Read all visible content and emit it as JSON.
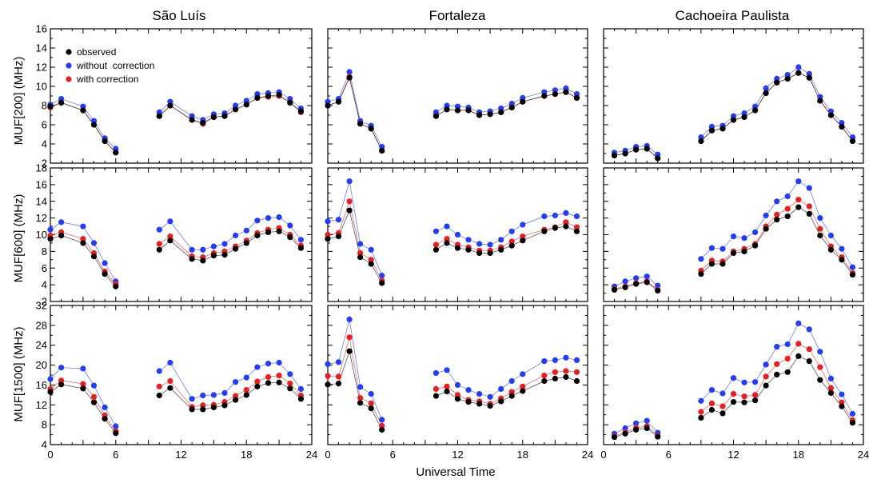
{
  "chart_data": {
    "type": "scatter",
    "x_title": "Universal Time",
    "columns": [
      "São Luís",
      "Fortaleza",
      "Cachoeira Paulista"
    ],
    "xlim": [
      0,
      24
    ],
    "xticks": [
      0,
      6,
      12,
      18,
      24
    ],
    "rows": [
      {
        "ylabel": "MUF[200] (MHz)",
        "ylim": [
          2,
          16
        ],
        "yticks": [
          2,
          4,
          6,
          8,
          10,
          12,
          14,
          16
        ]
      },
      {
        "ylabel": "MUF[600] (MHz)",
        "ylim": [
          2,
          18
        ],
        "yticks": [
          2,
          4,
          6,
          8,
          10,
          12,
          14,
          16,
          18
        ]
      },
      {
        "ylabel": "MUF[1500] (MHz)",
        "ylim": [
          4,
          32
        ],
        "yticks": [
          4,
          8,
          12,
          16,
          20,
          24,
          28,
          32
        ]
      }
    ],
    "legend": {
      "location": "top-left of first panel",
      "entries": [
        {
          "label": "observed",
          "color": "#000000"
        },
        {
          "label": "without  correction",
          "color": "#1f3cff"
        },
        {
          "label": "with correction",
          "color": "#ee1c1c"
        }
      ]
    },
    "series_colors": {
      "observed": "#000000",
      "without": "#1f3cff",
      "with": "#ee1c1c"
    },
    "panels": [
      {
        "row": 0,
        "col": 0,
        "x": [
          0,
          1,
          3,
          4,
          5,
          6,
          10,
          11,
          13,
          14,
          15,
          16,
          17,
          18,
          19,
          20,
          21,
          22,
          23
        ],
        "observed": [
          7.9,
          8.3,
          7.5,
          6.0,
          4.3,
          3.1,
          6.9,
          8.0,
          6.5,
          6.2,
          6.8,
          6.9,
          7.6,
          8.1,
          8.8,
          9.0,
          9.1,
          8.3,
          7.4
        ],
        "without": [
          8.1,
          8.7,
          7.9,
          6.4,
          4.6,
          3.5,
          7.3,
          8.4,
          6.9,
          6.5,
          7.1,
          7.2,
          8.0,
          8.5,
          9.2,
          9.3,
          9.4,
          8.7,
          7.7
        ],
        "with": [
          7.8,
          8.3,
          7.5,
          6.0,
          4.3,
          3.1,
          6.9,
          8.0,
          6.5,
          6.1,
          6.8,
          6.9,
          7.6,
          8.1,
          8.8,
          8.9,
          9.0,
          8.3,
          7.3
        ]
      },
      {
        "row": 0,
        "col": 1,
        "x": [
          0,
          1,
          2,
          3,
          4,
          5,
          10,
          11,
          12,
          13,
          14,
          15,
          16,
          17,
          18,
          20,
          21,
          22,
          23
        ],
        "observed": [
          8.0,
          8.4,
          10.9,
          6.1,
          5.6,
          3.3,
          6.9,
          7.6,
          7.5,
          7.5,
          7.0,
          7.1,
          7.3,
          7.8,
          8.4,
          9.0,
          9.2,
          9.4,
          8.8
        ],
        "without": [
          8.4,
          8.7,
          11.5,
          6.4,
          5.9,
          3.7,
          7.3,
          8.0,
          7.9,
          7.8,
          7.3,
          7.4,
          7.7,
          8.2,
          8.8,
          9.4,
          9.6,
          9.8,
          9.2
        ],
        "with": [
          8.0,
          8.4,
          11.0,
          6.1,
          5.6,
          3.3,
          6.9,
          7.6,
          7.5,
          7.5,
          7.0,
          7.1,
          7.3,
          7.8,
          8.4,
          9.0,
          9.2,
          9.4,
          8.8
        ]
      },
      {
        "row": 0,
        "col": 2,
        "x": [
          1,
          2,
          3,
          4,
          5,
          9,
          10,
          11,
          12,
          13,
          14,
          15,
          16,
          17,
          18,
          19,
          20,
          21,
          22,
          23
        ],
        "observed": [
          2.8,
          3.0,
          3.4,
          3.5,
          2.5,
          4.3,
          5.4,
          5.6,
          6.5,
          6.8,
          7.5,
          9.3,
          10.4,
          10.8,
          11.4,
          10.9,
          8.5,
          7.0,
          5.8,
          4.3
        ],
        "without": [
          3.1,
          3.3,
          3.7,
          3.8,
          2.9,
          4.7,
          5.8,
          5.9,
          6.9,
          7.2,
          7.9,
          9.8,
          10.8,
          11.2,
          12.0,
          11.3,
          8.9,
          7.4,
          6.2,
          4.7
        ],
        "with": [
          2.8,
          3.0,
          3.4,
          3.5,
          2.5,
          4.3,
          5.4,
          5.6,
          6.5,
          6.8,
          7.5,
          9.3,
          10.4,
          10.8,
          11.4,
          10.9,
          8.5,
          7.0,
          5.8,
          4.3
        ]
      },
      {
        "row": 1,
        "col": 0,
        "x": [
          0,
          1,
          3,
          4,
          5,
          6,
          10,
          11,
          13,
          14,
          15,
          16,
          17,
          18,
          19,
          20,
          21,
          22,
          23
        ],
        "observed": [
          9.5,
          9.9,
          9.0,
          7.4,
          5.3,
          3.8,
          8.2,
          9.3,
          7.1,
          6.9,
          7.5,
          7.6,
          8.3,
          9.0,
          9.9,
          10.3,
          10.4,
          9.7,
          8.4
        ],
        "without": [
          10.6,
          11.5,
          11.0,
          9.0,
          6.6,
          4.4,
          10.6,
          11.6,
          8.2,
          8.2,
          8.6,
          8.9,
          9.9,
          10.5,
          11.7,
          12.0,
          12.1,
          11.1,
          9.4
        ],
        "with": [
          9.9,
          10.3,
          9.5,
          7.8,
          5.6,
          4.1,
          8.9,
          9.8,
          7.4,
          7.3,
          7.8,
          8.0,
          8.6,
          9.3,
          10.2,
          10.6,
          10.8,
          10.0,
          8.7
        ]
      },
      {
        "row": 1,
        "col": 1,
        "x": [
          0,
          1,
          2,
          3,
          4,
          5,
          10,
          11,
          12,
          13,
          14,
          15,
          16,
          17,
          18,
          20,
          21,
          22,
          23
        ],
        "observed": [
          9.5,
          9.8,
          12.9,
          7.3,
          6.5,
          4.2,
          8.2,
          9.0,
          8.4,
          8.2,
          7.8,
          7.8,
          8.2,
          8.7,
          9.3,
          10.4,
          10.8,
          11.0,
          10.4
        ],
        "without": [
          11.6,
          11.8,
          16.4,
          8.9,
          8.2,
          5.1,
          10.4,
          11.0,
          10.0,
          9.4,
          8.9,
          8.8,
          9.4,
          10.4,
          11.2,
          12.2,
          12.3,
          12.6,
          12.2
        ],
        "with": [
          10.0,
          10.2,
          14.0,
          7.8,
          7.0,
          4.5,
          8.8,
          9.5,
          8.8,
          8.5,
          8.1,
          8.1,
          8.5,
          9.2,
          9.8,
          10.6,
          10.9,
          11.5,
          10.9
        ]
      },
      {
        "row": 1,
        "col": 2,
        "x": [
          1,
          2,
          3,
          4,
          5,
          9,
          10,
          11,
          12,
          13,
          14,
          15,
          16,
          17,
          18,
          19,
          20,
          21,
          22,
          23
        ],
        "observed": [
          3.4,
          3.7,
          4.1,
          4.3,
          3.3,
          5.3,
          6.5,
          6.5,
          7.8,
          8.0,
          8.7,
          10.7,
          11.8,
          12.2,
          13.3,
          12.5,
          9.9,
          8.2,
          7.0,
          5.2
        ],
        "without": [
          3.8,
          4.4,
          4.8,
          5.0,
          3.9,
          7.1,
          8.4,
          8.3,
          9.8,
          9.6,
          10.3,
          12.3,
          14.0,
          14.6,
          16.4,
          15.6,
          12.0,
          9.9,
          8.3,
          6.1
        ],
        "with": [
          3.5,
          3.8,
          4.2,
          4.4,
          3.4,
          5.7,
          6.9,
          6.8,
          8.0,
          8.3,
          8.9,
          11.0,
          12.4,
          13.1,
          14.2,
          13.4,
          10.7,
          8.6,
          7.3,
          5.4
        ]
      },
      {
        "row": 2,
        "col": 0,
        "x": [
          0,
          1,
          3,
          4,
          5,
          6,
          10,
          11,
          13,
          14,
          15,
          16,
          17,
          18,
          19,
          20,
          21,
          22,
          23
        ],
        "observed": [
          14.6,
          16.1,
          15.3,
          12.5,
          9.2,
          6.3,
          13.9,
          15.4,
          11.1,
          11.1,
          11.5,
          11.9,
          13.0,
          14.0,
          15.7,
          16.4,
          16.5,
          15.3,
          13.2
        ],
        "without": [
          17.2,
          19.5,
          19.3,
          15.9,
          11.5,
          7.7,
          18.8,
          20.5,
          13.2,
          13.9,
          14.0,
          14.4,
          16.6,
          17.5,
          19.6,
          20.3,
          20.5,
          18.2,
          15.2
        ],
        "with": [
          15.2,
          16.9,
          16.2,
          13.6,
          9.9,
          6.7,
          15.7,
          16.8,
          11.6,
          11.9,
          12.0,
          12.6,
          13.8,
          15.0,
          16.7,
          17.6,
          17.9,
          16.3,
          13.9
        ]
      },
      {
        "row": 2,
        "col": 1,
        "x": [
          0,
          1,
          2,
          3,
          4,
          5,
          10,
          11,
          12,
          13,
          14,
          15,
          16,
          17,
          18,
          20,
          21,
          22,
          23
        ],
        "observed": [
          16.1,
          16.3,
          22.8,
          12.4,
          11.3,
          7.0,
          13.8,
          14.7,
          13.2,
          12.6,
          12.2,
          11.8,
          12.7,
          13.8,
          14.8,
          16.8,
          17.3,
          17.6,
          16.8
        ],
        "without": [
          20.2,
          20.6,
          29.2,
          15.6,
          14.2,
          9.0,
          18.4,
          19.0,
          16.0,
          15.0,
          14.2,
          13.6,
          15.2,
          16.8,
          18.2,
          20.8,
          21.0,
          21.5,
          21.0
        ],
        "with": [
          17.8,
          17.7,
          25.6,
          13.4,
          12.3,
          7.8,
          15.2,
          15.7,
          14.0,
          13.0,
          12.7,
          12.2,
          13.3,
          14.6,
          15.7,
          17.9,
          18.6,
          18.8,
          18.6
        ]
      },
      {
        "row": 2,
        "col": 2,
        "x": [
          1,
          2,
          3,
          4,
          5,
          9,
          10,
          11,
          12,
          13,
          14,
          15,
          16,
          17,
          18,
          19,
          20,
          21,
          22,
          23
        ],
        "observed": [
          5.5,
          6.2,
          7.0,
          7.3,
          5.6,
          9.4,
          11.0,
          10.3,
          12.6,
          12.5,
          12.9,
          15.9,
          18.1,
          18.6,
          21.8,
          20.8,
          17.0,
          14.4,
          11.7,
          8.4
        ],
        "without": [
          6.2,
          7.3,
          8.3,
          8.8,
          6.4,
          12.8,
          15.0,
          14.3,
          17.4,
          16.5,
          16.6,
          20.1,
          23.7,
          24.2,
          28.4,
          27.2,
          22.7,
          17.3,
          14.1,
          10.2
        ],
        "with": [
          5.7,
          6.5,
          7.4,
          7.7,
          5.8,
          10.6,
          12.3,
          11.7,
          14.2,
          13.7,
          14.0,
          17.7,
          20.2,
          21.3,
          24.3,
          23.2,
          19.6,
          15.4,
          12.5,
          8.9
        ]
      }
    ]
  }
}
